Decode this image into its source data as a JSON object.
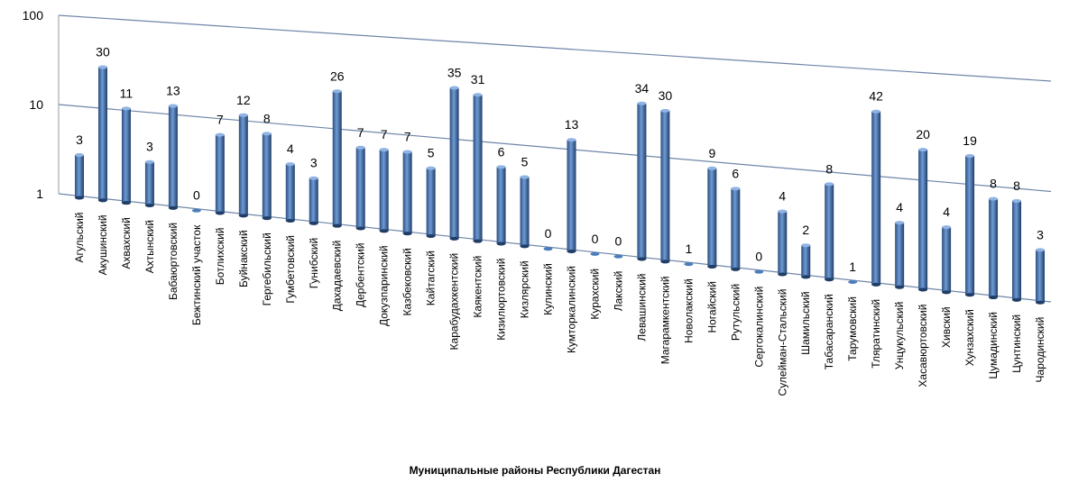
{
  "chart_data": {
    "type": "bar",
    "x_label": "Муниципальные районы Республики Дагестан",
    "categories": [
      "Агульский",
      "Акушинский",
      "Ахвахский",
      "Ахтынский",
      "Бабаюртовский",
      "Бежтинский участок",
      "Ботлихский",
      "Буйнакский",
      "Гергебильский",
      "Гумбетовский",
      "Гунибский",
      "Дахадаевский",
      "Дербентский",
      "Докузпаринский",
      "Казбековский",
      "Кайтагский",
      "Карабудахкентский",
      "Каякентский",
      "Кизилюртовский",
      "Кизлярский",
      "Кулинский",
      "Кумторкалинский",
      "Курахский",
      "Лакский",
      "Левашинский",
      "Магарамкентский",
      "Новолакский",
      "Ногайский",
      "Рутульский",
      "Сергокалинский",
      "Сулейман-Стальский",
      "Шамильский",
      "Табасаранский",
      "Тарумовский",
      "Тляратинский",
      "Унцукульский",
      "Хасавюртовский",
      "Хивский",
      "Хунзахский",
      "Цумадинский",
      "Цунтинский",
      "Чародинский"
    ],
    "values": [
      3,
      30,
      11,
      3,
      13,
      0,
      7,
      12,
      8,
      4,
      3,
      26,
      7,
      7,
      7,
      5,
      35,
      31,
      6,
      5,
      0,
      13,
      0,
      0,
      34,
      30,
      1,
      9,
      6,
      0,
      4,
      2,
      8,
      1,
      42,
      4,
      20,
      4,
      19,
      8,
      8,
      3
    ],
    "color": "#4a7ebb",
    "log_scale": true,
    "ylim": [
      1,
      100
    ],
    "yticks": [
      1,
      10,
      100
    ],
    "grid": true
  }
}
